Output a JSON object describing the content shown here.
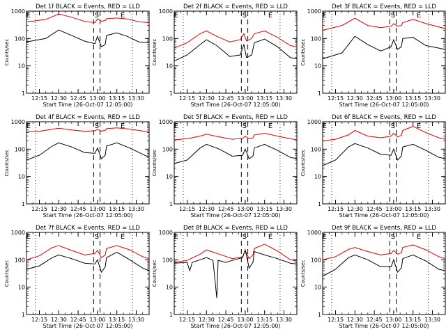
{
  "chart_data": {
    "type": "line",
    "xlabel": "Start Time (26-Oct-07 12:05:00)",
    "ylabel": "Counts/sec",
    "y_scale": "log",
    "ylim": [
      1,
      1000
    ],
    "y_ticks": [
      "1",
      "10",
      "100",
      "1000"
    ],
    "x_ticks": [
      "12:15",
      "12:30",
      "12:45",
      "13:00",
      "13:15",
      "13:30"
    ],
    "x_tick_minutes": [
      15,
      30,
      45,
      60,
      75,
      90
    ],
    "xlim_minutes": [
      5,
      100
    ],
    "marker_labels": [
      "E",
      "S",
      "E"
    ],
    "series_colors": {
      "events": "#000000",
      "lld": "#dd0000"
    },
    "panels": [
      {
        "title": "Det 1f BLACK = Events, RED = LLD",
        "events": [
          [
            5,
            75
          ],
          [
            20,
            100
          ],
          [
            30,
            205
          ],
          [
            40,
            130
          ],
          [
            50,
            80
          ],
          [
            58,
            65
          ],
          [
            60,
            120
          ],
          [
            63,
            50
          ],
          [
            66,
            60
          ],
          [
            67,
            130
          ],
          [
            75,
            160
          ],
          [
            83,
            120
          ],
          [
            92,
            75
          ],
          [
            100,
            70
          ]
        ],
        "lld": [
          [
            5,
            400
          ],
          [
            20,
            500
          ],
          [
            30,
            780
          ],
          [
            40,
            600
          ],
          [
            50,
            420
          ],
          [
            58,
            380
          ],
          [
            60,
            520
          ],
          [
            63,
            430
          ],
          [
            66,
            450
          ],
          [
            67,
            530
          ],
          [
            75,
            560
          ],
          [
            83,
            520
          ],
          [
            92,
            410
          ],
          [
            100,
            380
          ]
        ]
      },
      {
        "title": "Det 2f BLACK = Events, RED = LLD",
        "events": [
          [
            5,
            15
          ],
          [
            15,
            25
          ],
          [
            25,
            60
          ],
          [
            30,
            90
          ],
          [
            38,
            55
          ],
          [
            48,
            22
          ],
          [
            56,
            25
          ],
          [
            59,
            60
          ],
          [
            61,
            20
          ],
          [
            65,
            25
          ],
          [
            67,
            70
          ],
          [
            75,
            95
          ],
          [
            85,
            50
          ],
          [
            95,
            20
          ],
          [
            100,
            18
          ]
        ],
        "lld": [
          [
            5,
            45
          ],
          [
            15,
            70
          ],
          [
            25,
            150
          ],
          [
            30,
            190
          ],
          [
            38,
            120
          ],
          [
            48,
            75
          ],
          [
            56,
            90
          ],
          [
            59,
            150
          ],
          [
            61,
            80
          ],
          [
            65,
            100
          ],
          [
            67,
            150
          ],
          [
            75,
            190
          ],
          [
            85,
            110
          ],
          [
            95,
            55
          ],
          [
            100,
            50
          ]
        ]
      },
      {
        "title": "Det 3f BLACK = Events, RED = LLD",
        "events": [
          [
            5,
            18
          ],
          [
            20,
            30
          ],
          [
            30,
            120
          ],
          [
            40,
            60
          ],
          [
            50,
            35
          ],
          [
            58,
            50
          ],
          [
            60,
            90
          ],
          [
            63,
            40
          ],
          [
            66,
            50
          ],
          [
            67,
            100
          ],
          [
            75,
            110
          ],
          [
            85,
            55
          ],
          [
            100,
            40
          ]
        ],
        "lld": [
          [
            5,
            200
          ],
          [
            20,
            300
          ],
          [
            30,
            550
          ],
          [
            40,
            300
          ],
          [
            50,
            250
          ],
          [
            58,
            280
          ],
          [
            60,
            350
          ],
          [
            63,
            280
          ],
          [
            66,
            300
          ],
          [
            67,
            380
          ],
          [
            75,
            500
          ],
          [
            85,
            350
          ],
          [
            100,
            230
          ]
        ]
      },
      {
        "title": "Det 4f BLACK = Events, RED = LLD",
        "events": [
          [
            5,
            40
          ],
          [
            15,
            60
          ],
          [
            25,
            130
          ],
          [
            30,
            170
          ],
          [
            40,
            120
          ],
          [
            50,
            75
          ],
          [
            58,
            70
          ],
          [
            60,
            110
          ],
          [
            63,
            45
          ],
          [
            66,
            60
          ],
          [
            67,
            130
          ],
          [
            75,
            170
          ],
          [
            85,
            110
          ],
          [
            95,
            65
          ],
          [
            100,
            50
          ]
        ],
        "lld": [
          [
            5,
            420
          ],
          [
            15,
            450
          ],
          [
            25,
            530
          ],
          [
            30,
            580
          ],
          [
            40,
            500
          ],
          [
            50,
            450
          ],
          [
            58,
            470
          ],
          [
            60,
            530
          ],
          [
            63,
            460
          ],
          [
            66,
            480
          ],
          [
            67,
            560
          ],
          [
            75,
            600
          ],
          [
            85,
            540
          ],
          [
            95,
            460
          ],
          [
            100,
            420
          ]
        ]
      },
      {
        "title": "Det 5f BLACK = Events, RED = LLD",
        "events": [
          [
            5,
            30
          ],
          [
            15,
            40
          ],
          [
            25,
            110
          ],
          [
            30,
            150
          ],
          [
            40,
            100
          ],
          [
            50,
            55
          ],
          [
            58,
            60
          ],
          [
            60,
            100
          ],
          [
            63,
            45
          ],
          [
            66,
            55
          ],
          [
            67,
            110
          ],
          [
            75,
            150
          ],
          [
            85,
            90
          ],
          [
            95,
            50
          ],
          [
            100,
            45
          ]
        ],
        "lld": [
          [
            5,
            220
          ],
          [
            15,
            240
          ],
          [
            25,
            300
          ],
          [
            30,
            350
          ],
          [
            40,
            280
          ],
          [
            50,
            230
          ],
          [
            58,
            250
          ],
          [
            60,
            300
          ],
          [
            63,
            240
          ],
          [
            66,
            260
          ],
          [
            67,
            330
          ],
          [
            75,
            380
          ],
          [
            85,
            300
          ],
          [
            95,
            240
          ],
          [
            100,
            220
          ]
        ]
      },
      {
        "title": "Det 6f BLACK = Events, RED = LLD",
        "events": [
          [
            5,
            25
          ],
          [
            15,
            40
          ],
          [
            25,
            120
          ],
          [
            30,
            160
          ],
          [
            40,
            110
          ],
          [
            50,
            65
          ],
          [
            58,
            60
          ],
          [
            60,
            100
          ],
          [
            63,
            40
          ],
          [
            66,
            55
          ],
          [
            67,
            120
          ],
          [
            75,
            150
          ],
          [
            85,
            90
          ],
          [
            95,
            50
          ],
          [
            100,
            45
          ]
        ],
        "lld": [
          [
            5,
            200
          ],
          [
            15,
            230
          ],
          [
            25,
            330
          ],
          [
            30,
            480
          ],
          [
            40,
            300
          ],
          [
            50,
            260
          ],
          [
            58,
            300
          ],
          [
            60,
            380
          ],
          [
            63,
            280
          ],
          [
            66,
            320
          ],
          [
            67,
            480
          ],
          [
            75,
            680
          ],
          [
            85,
            400
          ],
          [
            95,
            260
          ],
          [
            100,
            230
          ]
        ]
      },
      {
        "title": "Det 7f BLACK = Events, RED = LLD",
        "events": [
          [
            5,
            45
          ],
          [
            15,
            60
          ],
          [
            25,
            120
          ],
          [
            30,
            150
          ],
          [
            40,
            110
          ],
          [
            50,
            75
          ],
          [
            58,
            70
          ],
          [
            60,
            100
          ],
          [
            63,
            35
          ],
          [
            66,
            55
          ],
          [
            67,
            120
          ],
          [
            75,
            190
          ],
          [
            85,
            100
          ],
          [
            95,
            50
          ],
          [
            100,
            40
          ]
        ],
        "lld": [
          [
            5,
            100
          ],
          [
            15,
            140
          ],
          [
            25,
            280
          ],
          [
            30,
            330
          ],
          [
            40,
            220
          ],
          [
            50,
            150
          ],
          [
            58,
            170
          ],
          [
            60,
            220
          ],
          [
            63,
            120
          ],
          [
            66,
            150
          ],
          [
            67,
            260
          ],
          [
            75,
            330
          ],
          [
            85,
            230
          ],
          [
            95,
            130
          ],
          [
            100,
            110
          ]
        ]
      },
      {
        "title": "Det 8f BLACK = Events, RED = LLD",
        "events": [
          [
            5,
            75
          ],
          [
            15,
            80
          ],
          [
            17,
            40
          ],
          [
            19,
            80
          ],
          [
            25,
            100
          ],
          [
            30,
            120
          ],
          [
            35,
            95
          ],
          [
            38,
            4
          ],
          [
            39,
            95
          ],
          [
            45,
            80
          ],
          [
            50,
            95
          ],
          [
            58,
            120
          ],
          [
            60,
            230
          ],
          [
            63,
            50
          ],
          [
            66,
            80
          ],
          [
            67,
            200
          ],
          [
            75,
            150
          ],
          [
            85,
            110
          ],
          [
            95,
            75
          ],
          [
            100,
            70
          ]
        ],
        "lld": [
          [
            5,
            80
          ],
          [
            15,
            95
          ],
          [
            25,
            160
          ],
          [
            30,
            230
          ],
          [
            40,
            160
          ],
          [
            50,
            110
          ],
          [
            58,
            130
          ],
          [
            60,
            220
          ],
          [
            63,
            110
          ],
          [
            66,
            150
          ],
          [
            67,
            260
          ],
          [
            75,
            370
          ],
          [
            85,
            210
          ],
          [
            95,
            100
          ],
          [
            100,
            90
          ]
        ]
      },
      {
        "title": "Det 9f BLACK = Events, RED = LLD",
        "events": [
          [
            5,
            25
          ],
          [
            15,
            45
          ],
          [
            25,
            120
          ],
          [
            30,
            150
          ],
          [
            40,
            100
          ],
          [
            50,
            55
          ],
          [
            58,
            55
          ],
          [
            60,
            100
          ],
          [
            63,
            35
          ],
          [
            66,
            50
          ],
          [
            67,
            110
          ],
          [
            75,
            150
          ],
          [
            85,
            90
          ],
          [
            95,
            45
          ],
          [
            100,
            40
          ]
        ],
        "lld": [
          [
            5,
            100
          ],
          [
            15,
            130
          ],
          [
            25,
            240
          ],
          [
            30,
            280
          ],
          [
            40,
            200
          ],
          [
            50,
            150
          ],
          [
            58,
            170
          ],
          [
            60,
            220
          ],
          [
            63,
            160
          ],
          [
            66,
            180
          ],
          [
            67,
            280
          ],
          [
            75,
            350
          ],
          [
            85,
            230
          ],
          [
            95,
            130
          ],
          [
            100,
            110
          ]
        ]
      }
    ]
  }
}
